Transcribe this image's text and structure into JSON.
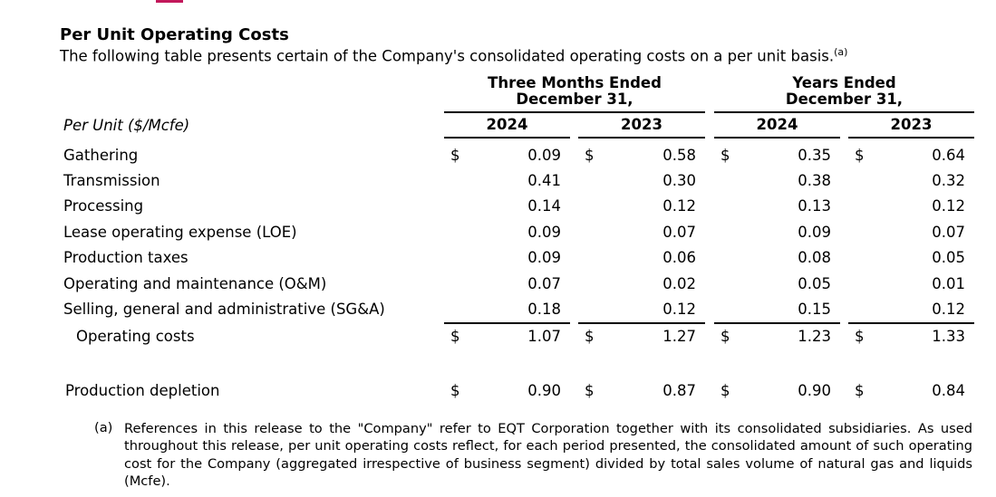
{
  "title": "Per Unit Operating Costs",
  "subtitle": "The following table presents certain of the Company's consolidated operating costs on a per unit basis.",
  "subtitle_note": "(a)",
  "groups": [
    {
      "line1": "Three Months Ended",
      "line2": "December 31,"
    },
    {
      "line1": "Years Ended",
      "line2": "December 31,"
    }
  ],
  "years": [
    "2024",
    "2023",
    "2024",
    "2023"
  ],
  "row_header": "Per Unit ($/Mcfe)",
  "currency": "$",
  "rows": [
    {
      "label": "Gathering",
      "values": [
        "0.09",
        "0.58",
        "0.35",
        "0.64"
      ],
      "dollar": true
    },
    {
      "label": "Transmission",
      "values": [
        "0.41",
        "0.30",
        "0.38",
        "0.32"
      ]
    },
    {
      "label": "Processing",
      "values": [
        "0.14",
        "0.12",
        "0.13",
        "0.12"
      ]
    },
    {
      "label": "Lease operating expense (LOE)",
      "values": [
        "0.09",
        "0.07",
        "0.09",
        "0.07"
      ]
    },
    {
      "label": "Production taxes",
      "values": [
        "0.09",
        "0.06",
        "0.08",
        "0.05"
      ]
    },
    {
      "label": "Operating and maintenance (O&M)",
      "values": [
        "0.07",
        "0.02",
        "0.05",
        "0.01"
      ]
    },
    {
      "label": "Selling, general and administrative (SG&A)",
      "values": [
        "0.18",
        "0.12",
        "0.15",
        "0.12"
      ]
    },
    {
      "label": "Operating costs",
      "values": [
        "1.07",
        "1.27",
        "1.23",
        "1.33"
      ],
      "dollar": true,
      "total": true
    },
    {
      "label": "Production depletion",
      "values": [
        "0.90",
        "0.87",
        "0.90",
        "0.84"
      ],
      "dollar": true
    }
  ],
  "footnote": {
    "mark": "(a)",
    "text": "References in this release to the \"Company\" refer to EQT Corporation together with its consolidated subsidiaries. As used throughout this release, per unit operating costs reflect, for each period presented, the consolidated amount of such operating cost for the Company (aggregated irrespective of business segment) divided by total sales volume of natural gas and liquids (Mcfe)."
  }
}
